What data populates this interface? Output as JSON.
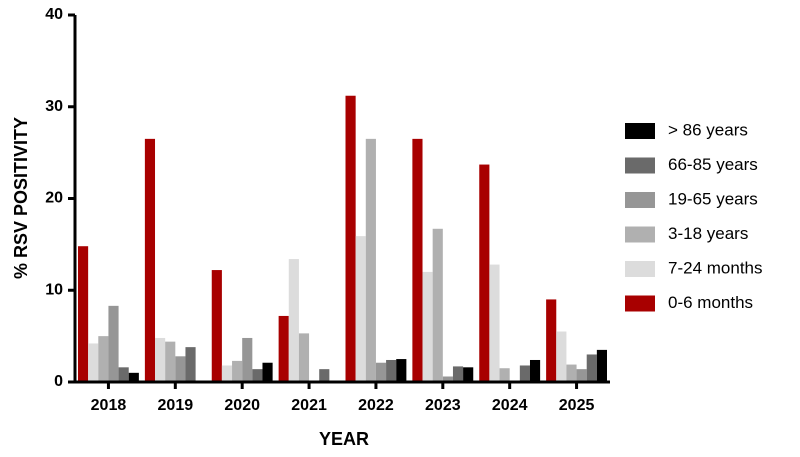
{
  "chart_data": {
    "type": "bar",
    "categories": [
      "2018",
      "2019",
      "2020",
      "2021",
      "2022",
      "2023",
      "2024",
      "2025"
    ],
    "series": [
      {
        "name": "0-6 months",
        "color": "#a80000",
        "values": [
          14.8,
          26.5,
          12.2,
          7.2,
          31.2,
          26.5,
          23.7,
          9.0
        ]
      },
      {
        "name": "7-24 months",
        "color": "#dcdcdc",
        "values": [
          4.2,
          4.8,
          1.8,
          13.4,
          15.9,
          12.0,
          12.8,
          5.5
        ]
      },
      {
        "name": "3-18 years",
        "color": "#b0b0b0",
        "values": [
          5.0,
          4.4,
          2.3,
          5.3,
          26.5,
          16.7,
          1.5,
          1.9
        ]
      },
      {
        "name": "19-65 years",
        "color": "#969696",
        "values": [
          8.3,
          2.8,
          4.8,
          0,
          2.1,
          0.6,
          0,
          1.4
        ]
      },
      {
        "name": "66-85 years",
        "color": "#6a6a6a",
        "values": [
          1.6,
          3.8,
          1.4,
          1.4,
          2.4,
          1.7,
          1.8,
          3.0
        ]
      },
      {
        "name": "> 86 years",
        "color": "#000000",
        "values": [
          1.0,
          0,
          2.1,
          0,
          2.5,
          1.6,
          2.4,
          3.5
        ]
      }
    ],
    "ylabel": "% RSV POSITIVITY",
    "xlabel": "YEAR",
    "ylim": [
      0,
      40
    ],
    "yticks": [
      0,
      10,
      20,
      30,
      40
    ],
    "grid": false
  }
}
